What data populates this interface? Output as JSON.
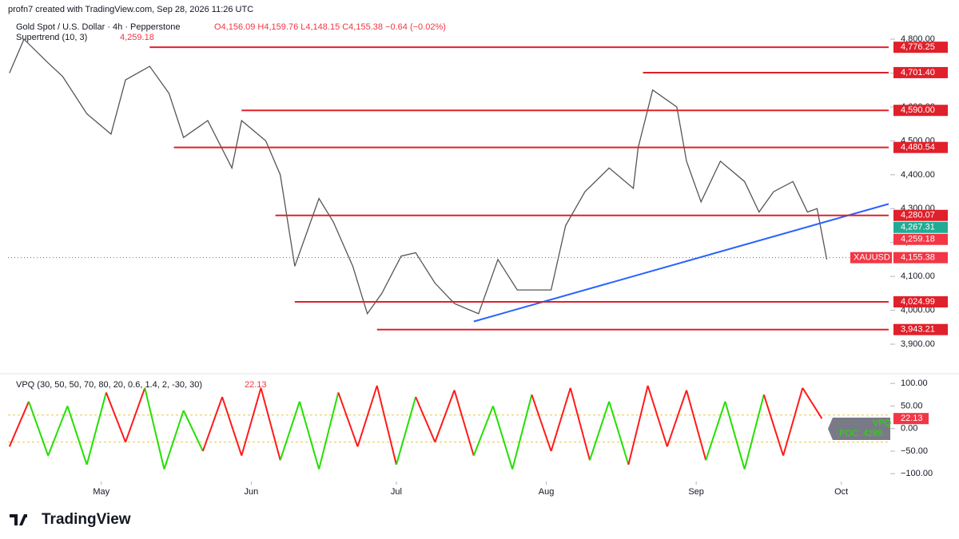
{
  "header": {
    "created": "profn7 created with TradingView.com, Sep 28, 2026 11:26 UTC",
    "symbol": "Gold Spot / U.S. Dollar · 4h · Pepperstone",
    "ohlc": "O4,156.09 H4,159.76 L4,148.15 C4,155.38 −0.64 (−0.02%)",
    "indicator": "Supertrend (10, 3)",
    "indicator_value": "4,259.18"
  },
  "footer": {
    "logo": "TradingView"
  },
  "chart_data": [
    {
      "type": "line",
      "color": "#555555",
      "x": [
        -19,
        -16,
        -11,
        -8,
        -3,
        2,
        5,
        10,
        14,
        17,
        22,
        27,
        29,
        34,
        37,
        40,
        43,
        45,
        48,
        52,
        55,
        58,
        62,
        65,
        69,
        73,
        78,
        82,
        86,
        93,
        96,
        100,
        105,
        110,
        111,
        114,
        119,
        121,
        124,
        128,
        133,
        136,
        139,
        143,
        146,
        148,
        150
      ],
      "values": [
        4700,
        4800,
        4730,
        4690,
        4580,
        4520,
        4680,
        4720,
        4640,
        4510,
        4560,
        4420,
        4560,
        4500,
        4400,
        4130,
        4250,
        4330,
        4260,
        4130,
        3990,
        4050,
        4160,
        4170,
        4080,
        4020,
        3990,
        4150,
        4060,
        4060,
        4250,
        4350,
        4420,
        4360,
        4480,
        4650,
        4600,
        4440,
        4320,
        4440,
        4380,
        4290,
        4350,
        4380,
        4290,
        4300,
        4150
      ],
      "xlim": [
        -19.3,
        162.8
      ],
      "xticks": [
        {
          "value": 0,
          "label": "May"
        },
        {
          "value": 31,
          "label": "Jun"
        },
        {
          "value": 61,
          "label": "Jul"
        },
        {
          "value": 92,
          "label": "Aug"
        },
        {
          "value": 123,
          "label": "Sep"
        },
        {
          "value": 153,
          "label": "Oct"
        }
      ],
      "ylim": [
        3820,
        4845
      ],
      "yticks": [
        {
          "value": 3900,
          "label": "3,900.00"
        },
        {
          "value": 4000,
          "label": "4,000.00"
        },
        {
          "value": 4100,
          "label": "4,100.00"
        },
        {
          "value": 4200,
          "label": "4,200.00"
        },
        {
          "value": 4300,
          "label": "4,300.00"
        },
        {
          "value": 4400,
          "label": "4,400.00"
        },
        {
          "value": 4500,
          "label": "4,500.00"
        },
        {
          "value": 4600,
          "label": "4,600.00"
        },
        {
          "value": 4700,
          "label": "4,700.00"
        },
        {
          "value": 4800,
          "label": "4,800.00"
        }
      ],
      "levels": {
        "color": "#e0202a",
        "items": [
          {
            "value": 4776.25,
            "start": 10,
            "label": "4,776.25"
          },
          {
            "value": 4701.4,
            "start": 112,
            "label": "4,701.40"
          },
          {
            "value": 4590.0,
            "start": 29,
            "label": "4,590.00"
          },
          {
            "value": 4480.54,
            "start": 15,
            "label": "4,480.54"
          },
          {
            "value": 4280.07,
            "start": 36,
            "label": "4,280.07"
          },
          {
            "value": 4024.99,
            "start": 40,
            "label": "4,024.99"
          },
          {
            "value": 3943.21,
            "start": 57,
            "label": "3,943.21"
          }
        ]
      },
      "trendline": {
        "color": "#2962ff",
        "x": [
          77,
          162.8
        ],
        "values": [
          3967,
          4314
        ]
      },
      "price_tags": [
        {
          "value": 4267.31,
          "label": "4,267.31",
          "color": "#22ab94"
        },
        {
          "value": 4259.18,
          "label": "4,259.18",
          "color": "#f23645"
        },
        {
          "name": "XAUUSD",
          "value": 4155.38,
          "label": "4,155.38",
          "color": "#f23645"
        }
      ]
    },
    {
      "type": "oscillator",
      "title": "VPQ (30, 50, 50, 70, 80, 20, 0.6, 1.4, 2, -30, 30)",
      "current_label": "22.13",
      "poc_name": "VPQ",
      "poc_label": "POC: 4289.",
      "up_color": "#ff1a1a",
      "down_color": "#22e000",
      "x": [
        -19,
        -15,
        -11,
        -7,
        -3,
        1,
        5,
        9,
        13,
        17,
        21,
        25,
        29,
        33,
        37,
        41,
        45,
        49,
        53,
        57,
        61,
        65,
        69,
        73,
        77,
        81,
        85,
        89,
        93,
        97,
        101,
        105,
        109,
        113,
        117,
        121,
        125,
        129,
        133,
        137,
        141,
        145,
        149
      ],
      "values": [
        -40,
        60,
        -60,
        50,
        -80,
        80,
        -30,
        90,
        -90,
        40,
        -50,
        70,
        -60,
        90,
        -70,
        60,
        -90,
        80,
        -40,
        95,
        -80,
        70,
        -30,
        85,
        -60,
        50,
        -90,
        75,
        -50,
        90,
        -70,
        60,
        -80,
        95,
        -40,
        85,
        -70,
        60,
        -90,
        75,
        -60,
        90,
        22.13
      ],
      "xlim": [
        -19.3,
        162.8
      ],
      "ylim": [
        -112,
        118
      ],
      "bands": [
        30,
        -30
      ],
      "yticks": [
        {
          "value": 100,
          "label": "100.00"
        },
        {
          "value": 50,
          "label": "50.00"
        },
        {
          "value": 0,
          "label": "0.00"
        },
        {
          "value": -50,
          "label": "−50.00"
        },
        {
          "value": -100,
          "label": "−100.00"
        }
      ]
    }
  ]
}
